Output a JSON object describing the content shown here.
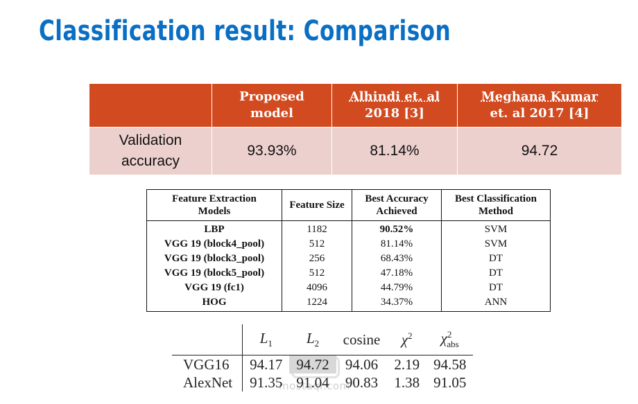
{
  "title": "Classification  result: Comparison",
  "table1": {
    "headers": [
      "",
      [
        "Proposed",
        "model"
      ],
      [
        "Alhindi et. al",
        "2018 [3]"
      ],
      [
        "Meghana Kumar",
        "et. al 2017 [4]"
      ]
    ],
    "row": {
      "label": [
        "Validation",
        "accuracy"
      ],
      "values": [
        "93.93%",
        "81.14%",
        "94.72"
      ]
    },
    "colors": {
      "header_bg": "#d24a1f",
      "row_bg": "#ecd0ce"
    }
  },
  "table2": {
    "headers": [
      [
        "Feature Extraction",
        "Models"
      ],
      [
        "Feature Size"
      ],
      [
        "Best Accuracy",
        "Achieved"
      ],
      [
        "Best Classification",
        "Method"
      ]
    ],
    "rows": [
      [
        "LBP",
        "1182",
        "90.52%",
        "SVM"
      ],
      [
        "VGG 19 (block4_pool)",
        "512",
        "81.14%",
        "SVM"
      ],
      [
        "VGG 19 (block3_pool)",
        "256",
        "68.43%",
        "DT"
      ],
      [
        "VGG 19 (block5_pool)",
        "512",
        "47.18%",
        "DT"
      ],
      [
        "VGG 19 (fc1)",
        "4096",
        "44.79%",
        "DT"
      ],
      [
        "HOG",
        "1224",
        "34.37%",
        "ANN"
      ]
    ]
  },
  "table3": {
    "headers": [
      "L1",
      "L2",
      "cosine",
      "χ2",
      "χ2abs"
    ],
    "rows": [
      [
        "VGG16",
        "94.17",
        "94.72",
        "94.06",
        "2.19",
        "94.58"
      ],
      [
        "AlexNet",
        "91.35",
        "91.04",
        "90.83",
        "1.38",
        "91.05"
      ]
    ]
  },
  "watermark": "mostaql.com"
}
